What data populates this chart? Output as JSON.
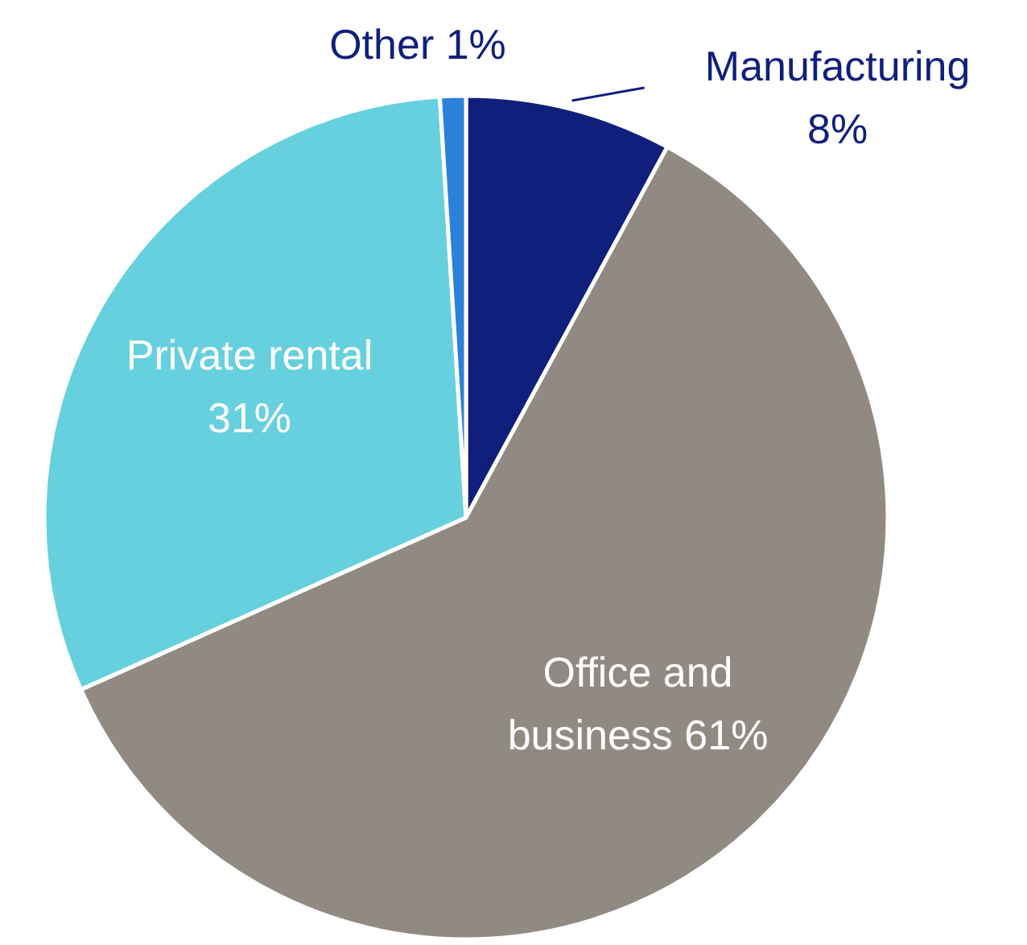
{
  "chart_data": {
    "type": "pie",
    "categories": [
      "Manufacturing",
      "Office and business",
      "Private rental",
      "Other"
    ],
    "values": [
      8,
      61,
      31,
      1
    ],
    "colors": [
      "#101f7c",
      "#918a83",
      "#67d0de",
      "#2b80d9"
    ],
    "value_labels": [
      "8%",
      "61%",
      "31%",
      "1%"
    ]
  }
}
